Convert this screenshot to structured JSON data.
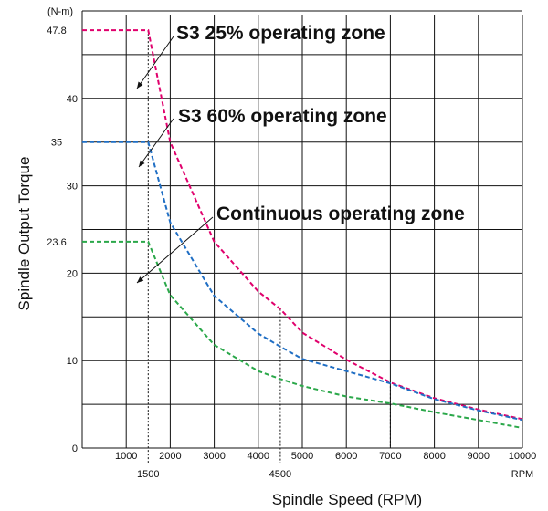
{
  "chart_data": {
    "type": "line",
    "xlabel": "Spindle Speed (RPM)",
    "ylabel": "Spindle Output Torque",
    "y_unit": "(N-m)",
    "x_unit": "RPM",
    "xlim": [
      0,
      10000
    ],
    "ylim": [
      0,
      50
    ],
    "grid": true,
    "x_ticks": [
      1000,
      2000,
      3000,
      4000,
      5000,
      6000,
      7000,
      8000,
      9000,
      10000
    ],
    "x_ticks_extra": [
      1500,
      4500
    ],
    "y_ticks": [
      0,
      10,
      20,
      30,
      40
    ],
    "y_ticks_extra": [
      23.6,
      35,
      47.8
    ],
    "colors": {
      "s3_25": "#e0006c",
      "s3_60": "#1f6ec4",
      "continuous": "#2ba84a"
    },
    "series": [
      {
        "key": "s3_25",
        "name": "S3 25% operating zone",
        "points": [
          [
            0,
            47.8
          ],
          [
            1500,
            47.8
          ],
          [
            2000,
            35
          ],
          [
            3000,
            23.6
          ],
          [
            4000,
            17.9
          ],
          [
            4500,
            15.9
          ],
          [
            5000,
            13.2
          ],
          [
            6000,
            10.1
          ],
          [
            7000,
            7.5
          ],
          [
            8000,
            5.7
          ],
          [
            9000,
            4.4
          ],
          [
            10000,
            3.3
          ]
        ]
      },
      {
        "key": "s3_60",
        "name": "S3 60% operating zone",
        "points": [
          [
            0,
            35
          ],
          [
            1500,
            35
          ],
          [
            2000,
            25.8
          ],
          [
            3000,
            17.4
          ],
          [
            4000,
            13.1
          ],
          [
            4500,
            11.6
          ],
          [
            5000,
            10.2
          ],
          [
            6000,
            8.8
          ],
          [
            7000,
            7.4
          ],
          [
            8000,
            5.6
          ],
          [
            9000,
            4.3
          ],
          [
            10000,
            3.2
          ]
        ]
      },
      {
        "key": "continuous",
        "name": "Continuous operating zone",
        "points": [
          [
            0,
            23.6
          ],
          [
            1500,
            23.6
          ],
          [
            2000,
            17.5
          ],
          [
            3000,
            11.8
          ],
          [
            4000,
            8.8
          ],
          [
            4500,
            7.9
          ],
          [
            5000,
            7.1
          ],
          [
            6000,
            5.9
          ],
          [
            7000,
            5.1
          ],
          [
            8000,
            4.1
          ],
          [
            9000,
            3.2
          ],
          [
            10000,
            2.3
          ]
        ]
      }
    ]
  }
}
